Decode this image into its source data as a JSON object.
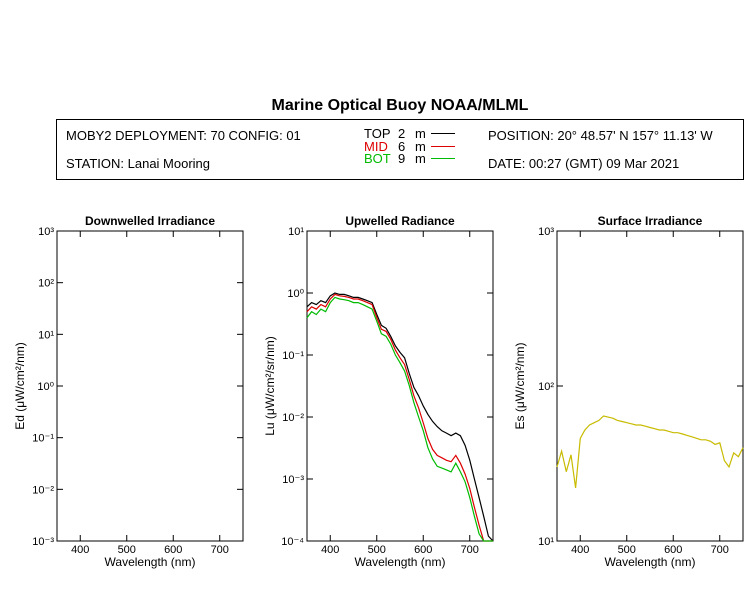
{
  "header": {
    "title": "Marine Optical Buoy NOAA/MLML",
    "deployment": "MOBY2 DEPLOYMENT: 70 CONFIG: 01",
    "station": "STATION: Lanai Mooring",
    "position": "POSITION: 20° 48.57' N   157° 11.13' W",
    "date": "DATE: 00:27 (GMT) 09 Mar 2021",
    "legend": [
      {
        "label": "TOP",
        "depth": "2",
        "unit": "m",
        "color": "#000000"
      },
      {
        "label": "MID",
        "depth": "6",
        "unit": "m",
        "color": "#dd0000"
      },
      {
        "label": "BOT",
        "depth": "9",
        "unit": "m",
        "color": "#00bb00"
      }
    ]
  },
  "chart_data": [
    {
      "type": "line",
      "title": "Downwelled Irradiance",
      "ylabel_prefix": "Ed",
      "ylabel_unit": "(μW/cm²/nm)",
      "xlabel": "Wavelength (nm)",
      "xlim": [
        350,
        750
      ],
      "ylim": [
        0.001,
        1000
      ],
      "yscale": "log",
      "xticks": [
        400,
        500,
        600,
        700
      ],
      "ytick_labels": [
        "10³",
        "10²",
        "10¹",
        "10⁰",
        "10⁻¹",
        "10⁻²",
        "10⁻³"
      ],
      "series": []
    },
    {
      "type": "line",
      "title": "Upwelled Radiance",
      "ylabel_prefix": "Lu",
      "ylabel_unit": "(μW/cm²/sr/nm)",
      "xlabel": "Wavelength (nm)",
      "xlim": [
        350,
        750
      ],
      "ylim": [
        0.0001,
        10
      ],
      "yscale": "log",
      "xticks": [
        400,
        500,
        600,
        700
      ],
      "ytick_labels": [
        "10¹",
        "10⁰",
        "10⁻¹",
        "10⁻²",
        "10⁻³",
        "10⁻⁴"
      ],
      "series": [
        {
          "color": "#000000",
          "x": [
            350,
            360,
            370,
            380,
            390,
            400,
            410,
            420,
            430,
            440,
            450,
            460,
            470,
            480,
            490,
            500,
            510,
            520,
            530,
            540,
            550,
            560,
            570,
            580,
            590,
            600,
            610,
            620,
            630,
            640,
            650,
            660,
            670,
            680,
            690,
            700,
            710,
            720,
            730,
            740,
            750
          ],
          "y": [
            0.6,
            0.7,
            0.65,
            0.75,
            0.7,
            0.9,
            1.0,
            0.95,
            0.95,
            0.9,
            0.85,
            0.85,
            0.8,
            0.75,
            0.7,
            0.45,
            0.3,
            0.27,
            0.2,
            0.14,
            0.11,
            0.09,
            0.05,
            0.03,
            0.022,
            0.015,
            0.011,
            0.0085,
            0.007,
            0.006,
            0.0055,
            0.005,
            0.0055,
            0.005,
            0.0035,
            0.002,
            0.001,
            0.0005,
            0.00025,
            0.00012,
            0.0001
          ]
        },
        {
          "color": "#dd0000",
          "x": [
            350,
            360,
            370,
            380,
            390,
            400,
            410,
            420,
            430,
            440,
            450,
            460,
            470,
            480,
            490,
            500,
            510,
            520,
            530,
            540,
            550,
            560,
            570,
            580,
            590,
            600,
            610,
            620,
            630,
            640,
            650,
            660,
            670,
            680,
            690,
            700,
            710,
            720,
            730,
            740,
            750
          ],
          "y": [
            0.5,
            0.6,
            0.55,
            0.65,
            0.6,
            0.8,
            0.95,
            0.9,
            0.88,
            0.85,
            0.8,
            0.8,
            0.75,
            0.7,
            0.65,
            0.4,
            0.26,
            0.24,
            0.18,
            0.12,
            0.09,
            0.07,
            0.04,
            0.022,
            0.014,
            0.008,
            0.0045,
            0.003,
            0.0024,
            0.0022,
            0.002,
            0.0019,
            0.0024,
            0.0018,
            0.0012,
            0.0007,
            0.00035,
            0.00018,
            0.0001,
            0.0001,
            0.0001
          ]
        },
        {
          "color": "#00bb00",
          "x": [
            350,
            360,
            370,
            380,
            390,
            400,
            410,
            420,
            430,
            440,
            450,
            460,
            470,
            480,
            490,
            500,
            510,
            520,
            530,
            540,
            550,
            560,
            570,
            580,
            590,
            600,
            610,
            620,
            630,
            640,
            650,
            660,
            670,
            680,
            690,
            700,
            710,
            720,
            730,
            740,
            750
          ],
          "y": [
            0.4,
            0.5,
            0.45,
            0.55,
            0.5,
            0.7,
            0.85,
            0.8,
            0.78,
            0.75,
            0.7,
            0.7,
            0.65,
            0.6,
            0.55,
            0.35,
            0.22,
            0.2,
            0.15,
            0.1,
            0.075,
            0.055,
            0.032,
            0.017,
            0.01,
            0.006,
            0.0032,
            0.0021,
            0.0016,
            0.0015,
            0.0014,
            0.0013,
            0.0018,
            0.0013,
            0.0009,
            0.0005,
            0.00025,
            0.00013,
            0.0001,
            0.0001,
            0.0001
          ]
        }
      ]
    },
    {
      "type": "line",
      "title": "Surface Irradiance",
      "ylabel_prefix": "Es",
      "ylabel_unit": "(μW/cm²/nm)",
      "xlabel": "Wavelength (nm)",
      "xlim": [
        350,
        750
      ],
      "ylim": [
        10,
        1000
      ],
      "yscale": "log",
      "xticks": [
        400,
        500,
        600,
        700
      ],
      "ytick_labels": [
        "10³",
        "10²",
        "10¹"
      ],
      "series": [
        {
          "color": "#c8bb00",
          "x": [
            350,
            360,
            370,
            380,
            390,
            400,
            410,
            420,
            430,
            440,
            450,
            460,
            470,
            480,
            490,
            500,
            510,
            520,
            530,
            540,
            550,
            560,
            570,
            580,
            590,
            600,
            610,
            620,
            630,
            640,
            650,
            660,
            670,
            680,
            690,
            700,
            710,
            720,
            730,
            740,
            750
          ],
          "y": [
            30,
            38,
            28,
            36,
            22,
            46,
            52,
            56,
            58,
            60,
            64,
            63,
            62,
            60,
            59,
            58,
            57,
            56,
            56,
            55,
            54,
            53,
            52,
            52,
            51,
            50,
            50,
            49,
            48,
            47,
            46,
            45,
            45,
            44,
            42,
            43,
            33,
            30,
            37,
            35,
            40
          ]
        }
      ]
    }
  ]
}
